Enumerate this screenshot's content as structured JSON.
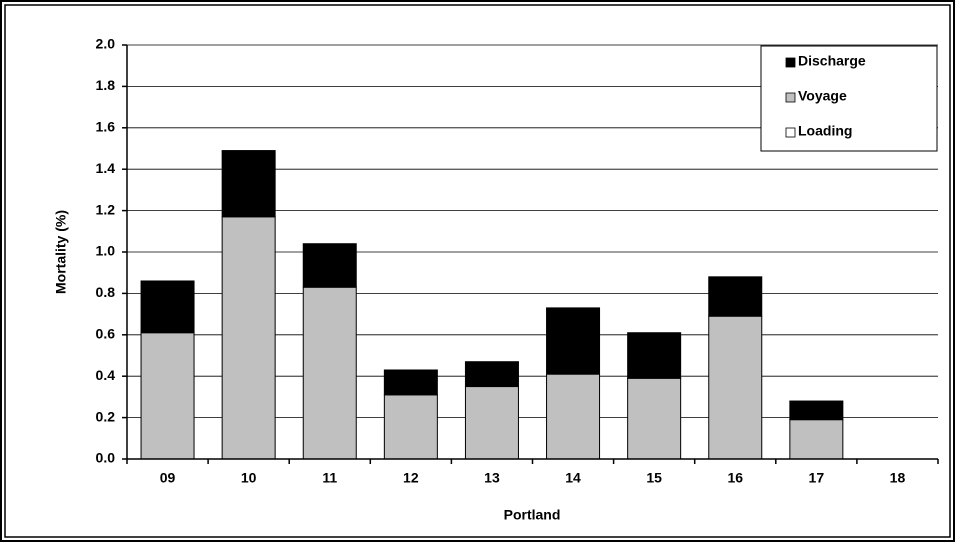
{
  "chart_data": {
    "type": "stacked_bar",
    "xlabel": "Portland",
    "ylabel": "Mortality  (%)",
    "categories": [
      "09",
      "10",
      "11",
      "12",
      "13",
      "14",
      "15",
      "16",
      "17",
      "18"
    ],
    "series": [
      {
        "name": "Loading",
        "color": "#ffffff",
        "values": [
          0,
          0,
          0,
          0,
          0,
          0,
          0,
          0,
          0,
          0
        ]
      },
      {
        "name": "Voyage",
        "color": "#c0c0c0",
        "values": [
          0.61,
          1.17,
          0.83,
          0.31,
          0.35,
          0.41,
          0.39,
          0.69,
          0.19,
          0
        ]
      },
      {
        "name": "Discharge",
        "color": "#000000",
        "values": [
          0.25,
          0.32,
          0.21,
          0.12,
          0.12,
          0.32,
          0.22,
          0.19,
          0.09,
          0
        ]
      }
    ],
    "ylim": [
      0,
      2
    ],
    "yticks": [
      {
        "value": 0,
        "label": "0.0"
      },
      0.2,
      0.4,
      0.6,
      0.8,
      {
        "value": 1,
        "label": "1.0"
      },
      1.2,
      1.4,
      1.6,
      1.8,
      {
        "value": 2,
        "label": "2.0"
      }
    ],
    "grid": true,
    "legend": "top-right"
  }
}
